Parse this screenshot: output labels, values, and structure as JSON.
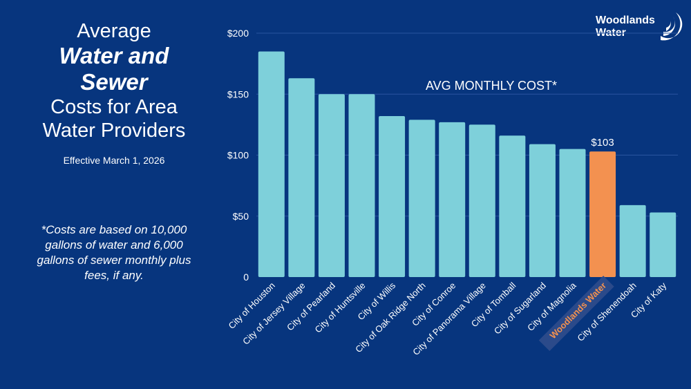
{
  "title": {
    "line1": "Average",
    "line2": "Water and",
    "line3": "Sewer",
    "line4": "Costs for Area",
    "line5": "Water Providers"
  },
  "effective": "Effective March 1, 2026",
  "note": "*Costs are based on 10,000 gallons of water and 6,000 gallons of sewer monthly plus fees, if any.",
  "logo": {
    "line1": "Woodlands",
    "line2": "Water"
  },
  "colors": {
    "background": "#07357e",
    "bar": "#7ed0da",
    "highlight": "#f39150"
  },
  "chart_data": {
    "type": "bar",
    "title": "AVG MONTHLY COST*",
    "categories": [
      "City of Houston",
      "City of Jersey Village",
      "City of Pearland",
      "City of Huntsville",
      "City of Willis",
      "City of Oak Ridge North",
      "City of Conroe",
      "City of Panorama Village",
      "City of Tomball",
      "City of Sugarland",
      "City of Magnolia",
      "Woodlands Water",
      "City of Shenendoah",
      "City of Katy"
    ],
    "values": [
      185,
      163,
      150,
      150,
      132,
      129,
      127,
      125,
      116,
      109,
      105,
      103,
      59,
      53
    ],
    "highlight": "Woodlands Water",
    "data_labels": {
      "Woodlands Water": "$103"
    },
    "yticks": [
      "0",
      "$50",
      "$100",
      "$150",
      "$200"
    ],
    "ytick_values": [
      0,
      50,
      100,
      150,
      200
    ],
    "ylim": [
      0,
      200
    ],
    "grid": true,
    "xlabel": "",
    "ylabel": ""
  }
}
